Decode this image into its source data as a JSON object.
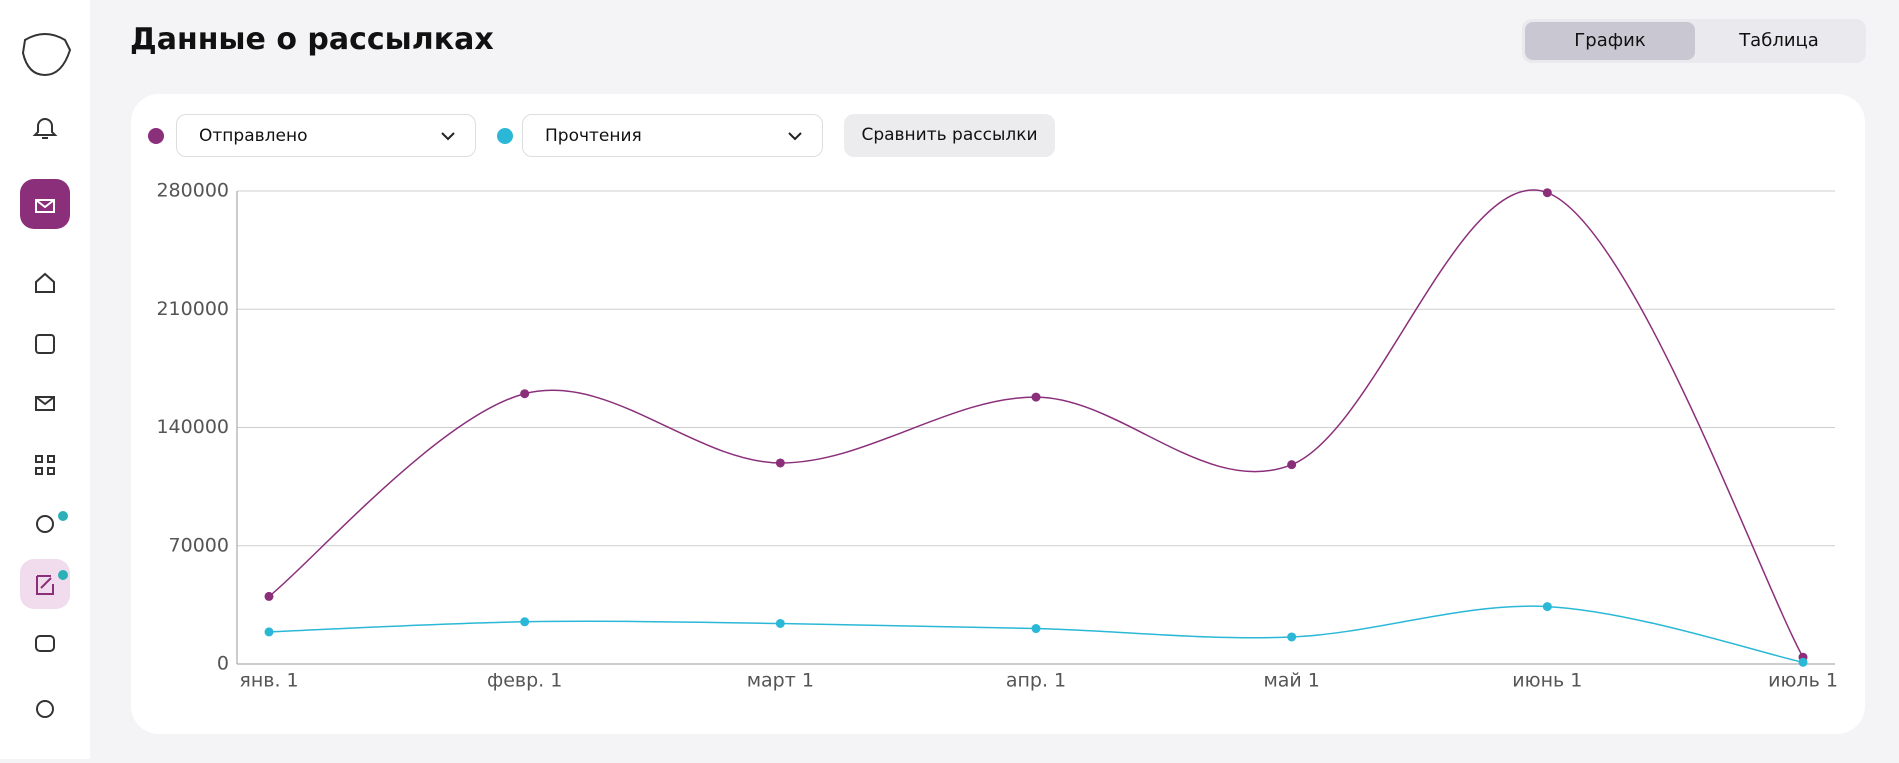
{
  "header": {
    "title": "Данные о рассылках"
  },
  "view_toggle": [
    "График",
    "Таблица"
  ],
  "compare_button": "Сравнить рассылки",
  "chart_data": {
    "type": "line",
    "categories": [
      "янв. 1",
      "февр. 1",
      "март 1",
      "апр. 1",
      "май 1",
      "июнь 1",
      "июль 1"
    ],
    "series": [
      {
        "name": "Отправлено",
        "color": "#8b2f7a",
        "values": [
          40000,
          160000,
          119000,
          158000,
          118000,
          279000,
          4000
        ]
      },
      {
        "name": "Прочтения",
        "color": "#2bb8d6",
        "values": [
          19000,
          25000,
          24000,
          21000,
          16000,
          34000,
          1000
        ]
      }
    ],
    "ylim": [
      0,
      280000
    ],
    "yticks": [
      0,
      70000,
      140000,
      210000,
      280000
    ],
    "grid": true
  }
}
